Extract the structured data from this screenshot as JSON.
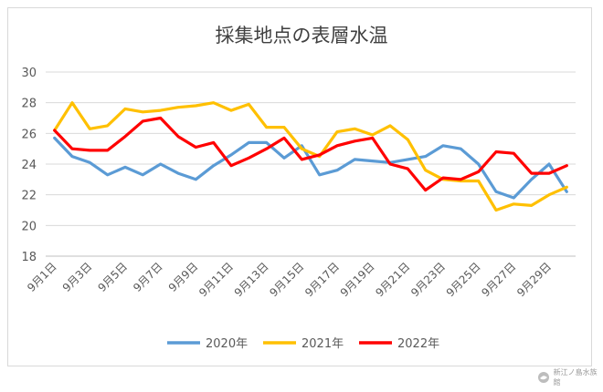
{
  "chart_data": {
    "type": "line",
    "title": "採集地点の表層水温",
    "xlabel": "",
    "ylabel": "",
    "ylim": [
      18,
      30
    ],
    "yticks": [
      18,
      20,
      22,
      24,
      26,
      28,
      30
    ],
    "grid": true,
    "legend_position": "bottom",
    "categories": [
      "9月1日",
      "9月2日",
      "9月3日",
      "9月4日",
      "9月5日",
      "9月6日",
      "9月7日",
      "9月8日",
      "9月9日",
      "9月10日",
      "9月11日",
      "9月12日",
      "9月13日",
      "9月14日",
      "9月15日",
      "9月16日",
      "9月17日",
      "9月18日",
      "9月19日",
      "9月20日",
      "9月21日",
      "9月22日",
      "9月23日",
      "9月24日",
      "9月25日",
      "9月26日",
      "9月27日",
      "9月28日",
      "9月29日",
      "9月30日"
    ],
    "xtick_labels": [
      "9月1日",
      "9月3日",
      "9月5日",
      "9月7日",
      "9月9日",
      "9月11日",
      "9月13日",
      "9月15日",
      "9月17日",
      "9月19日",
      "9月21日",
      "9月23日",
      "9月25日",
      "9月27日",
      "9月29日"
    ],
    "series": [
      {
        "name": "2020年",
        "color": "#5b9bd5",
        "values": [
          25.7,
          24.5,
          24.1,
          23.3,
          23.8,
          23.3,
          24.0,
          23.4,
          23.0,
          23.9,
          24.6,
          25.4,
          25.4,
          24.4,
          25.2,
          23.3,
          23.6,
          24.3,
          24.2,
          24.1,
          24.3,
          24.5,
          25.2,
          25.0,
          24.0,
          22.2,
          21.8,
          23.0,
          24.0,
          22.2
        ]
      },
      {
        "name": "2021年",
        "color": "#ffc000",
        "values": [
          26.2,
          28.0,
          26.3,
          26.5,
          27.6,
          27.4,
          27.5,
          27.7,
          27.8,
          28.0,
          27.5,
          27.9,
          26.4,
          26.4,
          25.0,
          24.5,
          26.1,
          26.3,
          25.9,
          26.5,
          25.6,
          23.6,
          23.0,
          22.9,
          22.9,
          21.0,
          21.4,
          21.3,
          22.0,
          22.5
        ]
      },
      {
        "name": "2022年",
        "color": "#ff0000",
        "values": [
          26.2,
          25.0,
          24.9,
          24.9,
          25.8,
          26.8,
          27.0,
          25.8,
          25.1,
          25.4,
          23.9,
          24.4,
          25.0,
          25.7,
          24.3,
          24.6,
          25.2,
          25.5,
          25.7,
          24.0,
          23.7,
          22.3,
          23.1,
          23.0,
          23.5,
          24.8,
          24.7,
          23.4,
          23.4,
          23.9
        ]
      }
    ]
  },
  "watermark": {
    "text": "新江ノ島水族館"
  }
}
